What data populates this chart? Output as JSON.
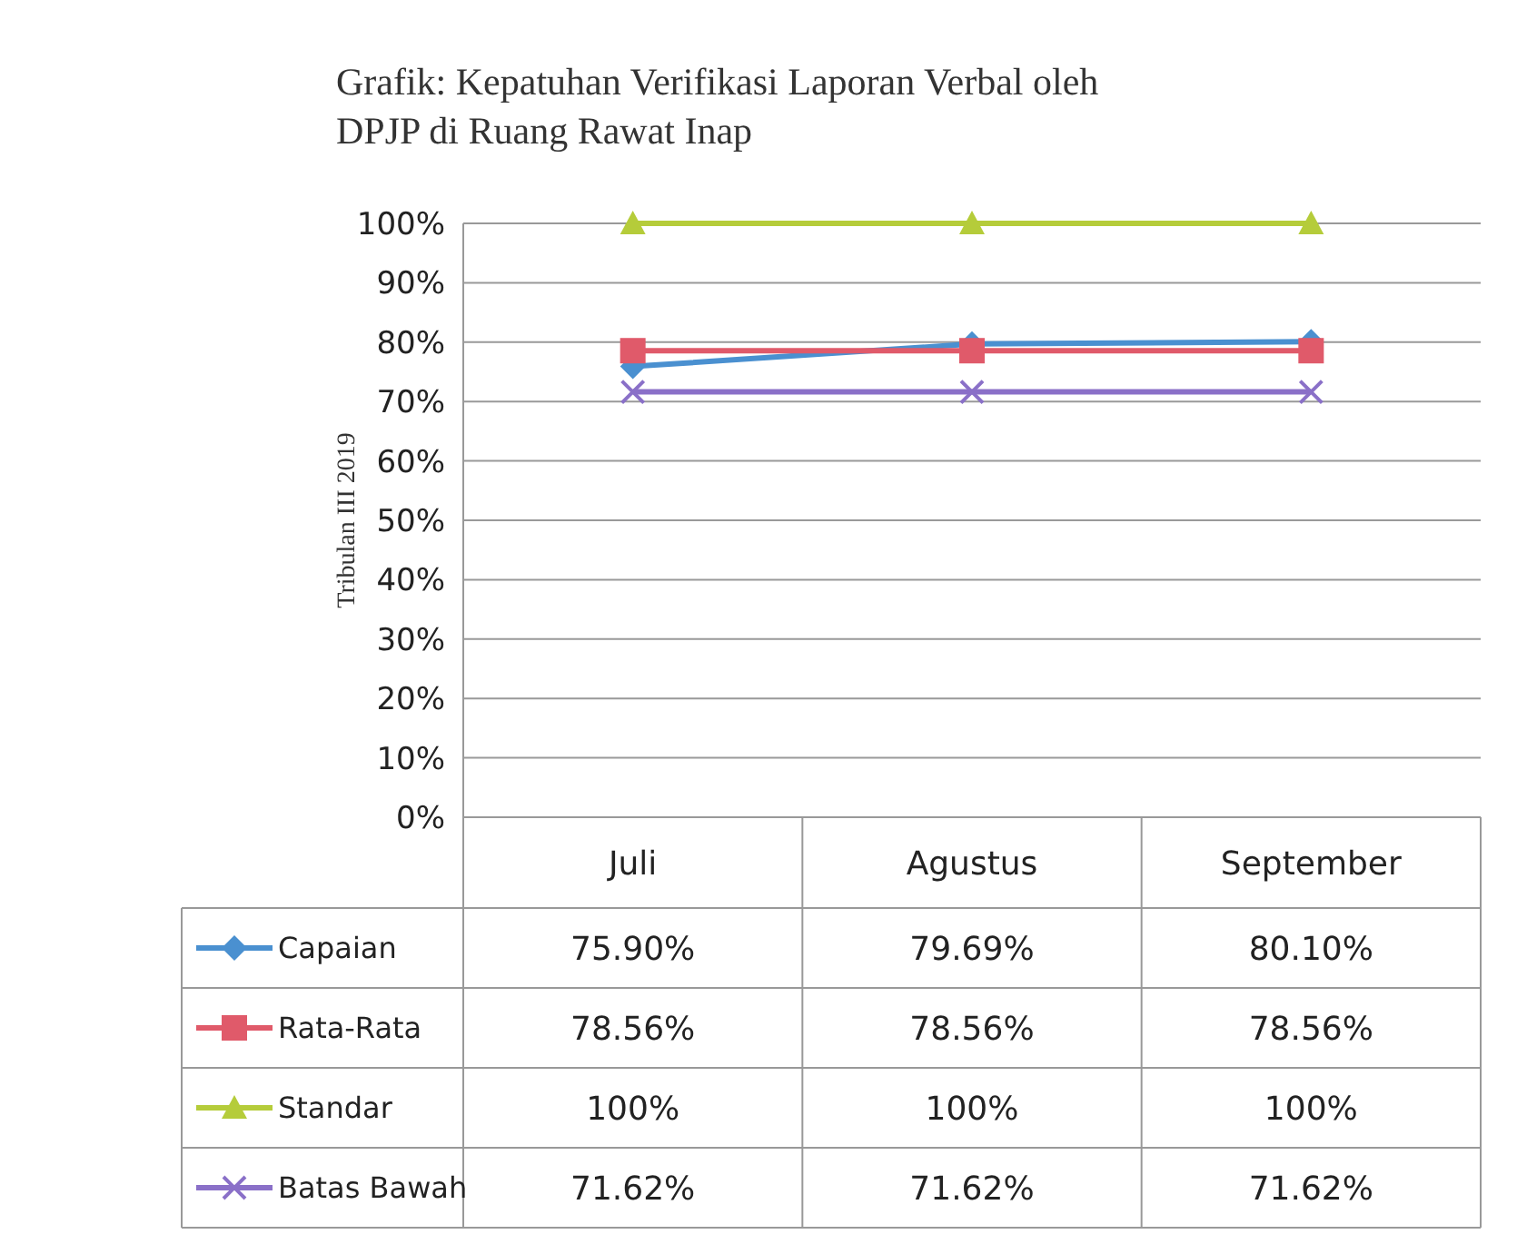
{
  "chart_data": {
    "type": "line",
    "title": "Grafik: Kepatuhan Verifikasi Laporan Verbal oleh DPJP di Ruang Rawat Inap",
    "ylabel": "Tribulan  III 2019",
    "categories": [
      "Juli",
      "Agustus",
      "September"
    ],
    "series": [
      {
        "name": "Capaian",
        "color": "#4a90d0",
        "marker": "diamond",
        "values": [
          75.9,
          79.69,
          80.1
        ],
        "value_labels": [
          "75.90%",
          "79.69%",
          "80.10%"
        ]
      },
      {
        "name": "Rata-Rata",
        "color": "#e05a6a",
        "marker": "square",
        "values": [
          78.56,
          78.56,
          78.56
        ],
        "value_labels": [
          "78.56%",
          "78.56%",
          "78.56%"
        ]
      },
      {
        "name": "Standar",
        "color": "#b5cc3a",
        "marker": "triangle",
        "values": [
          100,
          100,
          100
        ],
        "value_labels": [
          "100%",
          "100%",
          "100%"
        ]
      },
      {
        "name": "Batas Bawah",
        "color": "#8a70c8",
        "marker": "cross",
        "values": [
          71.62,
          71.62,
          71.62
        ],
        "value_labels": [
          "71.62%",
          "71.62%",
          "71.62%"
        ]
      }
    ],
    "ylim": [
      0,
      100
    ],
    "yticks": [
      {
        "value": 0,
        "label": "0%"
      },
      {
        "value": 10,
        "label": "10%"
      },
      {
        "value": 20,
        "label": "20%"
      },
      {
        "value": 30,
        "label": "30%"
      },
      {
        "value": 40,
        "label": "40%"
      },
      {
        "value": 50,
        "label": "50%"
      },
      {
        "value": 60,
        "label": "60%"
      },
      {
        "value": 70,
        "label": "70%"
      },
      {
        "value": 80,
        "label": "80%"
      },
      {
        "value": 90,
        "label": "90%"
      },
      {
        "value": 100,
        "label": "100%"
      }
    ],
    "grid": "y",
    "legend": "bottom"
  }
}
